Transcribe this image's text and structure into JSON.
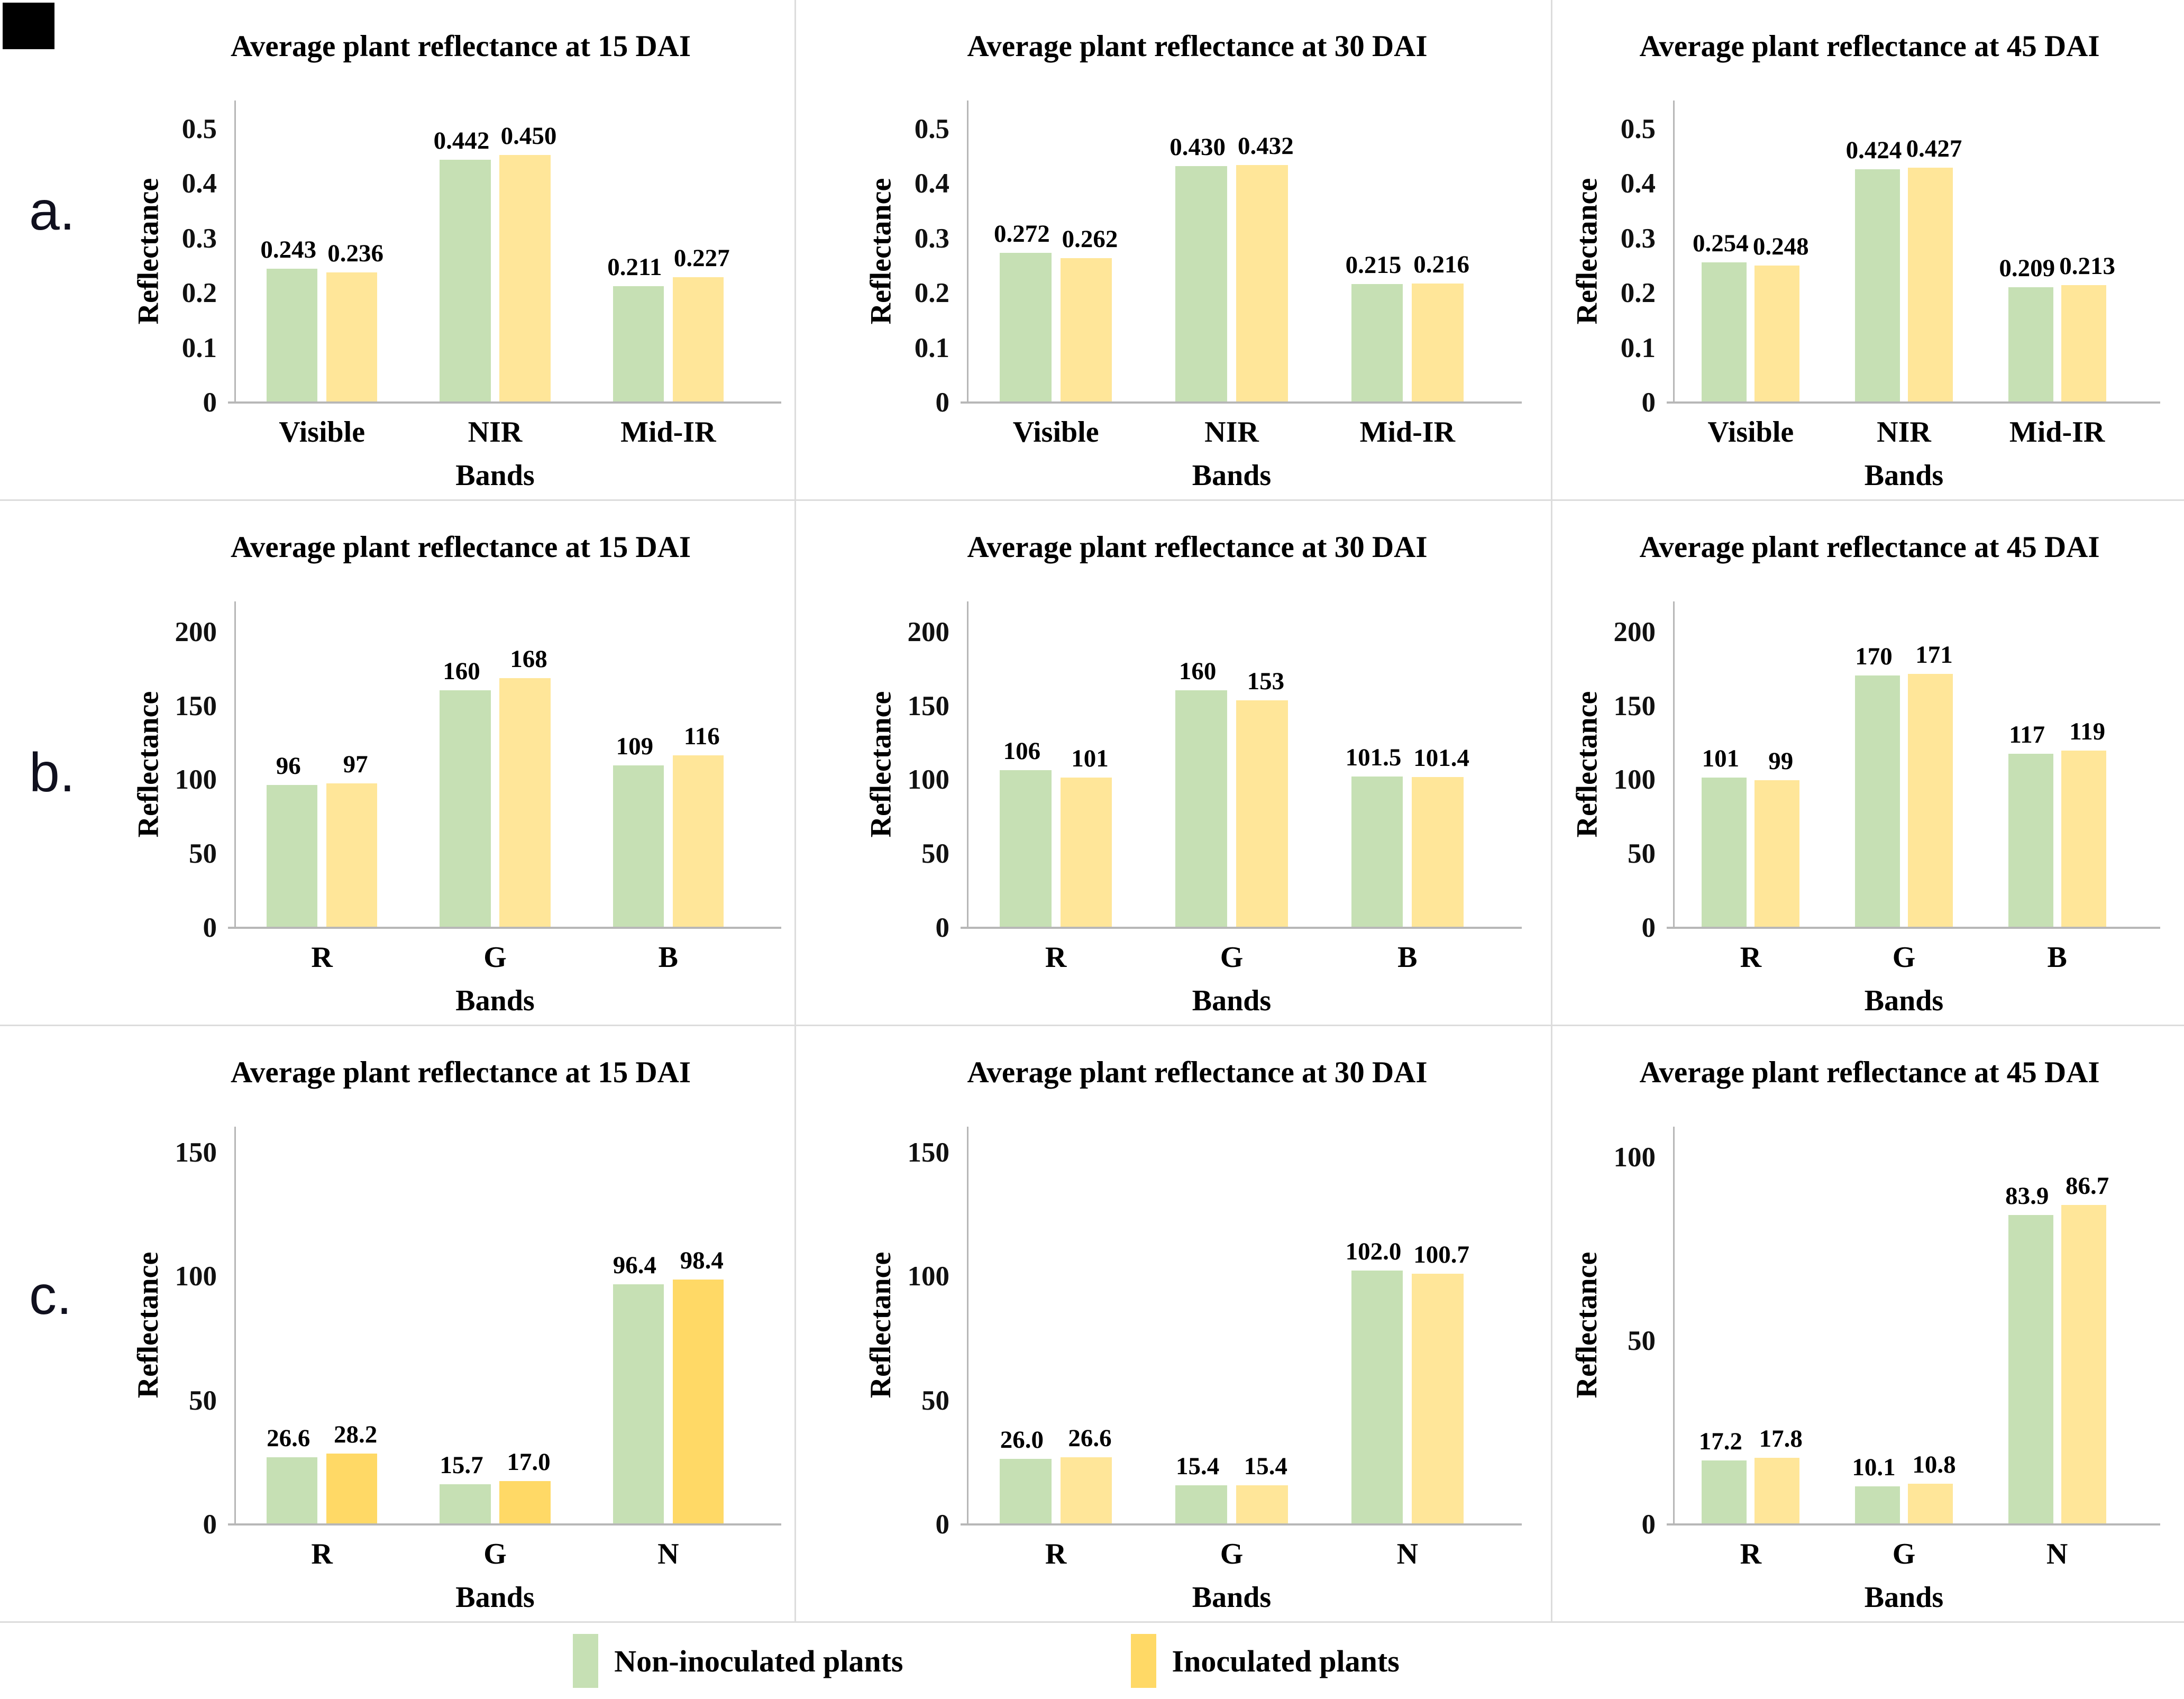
{
  "page": {
    "row_labels": [
      "a.",
      "b.",
      "c."
    ]
  },
  "legend": {
    "items": [
      {
        "label": "Non-inoculated plants",
        "color": "#C6E0B4"
      },
      {
        "label": "Inoculated plants",
        "color": "#FFD966"
      }
    ]
  },
  "chart_data": [
    {
      "type": "bar",
      "row": 0,
      "col": 0,
      "title": "Average plant reflectance at 15 DAI",
      "ylabel": "Reflectance",
      "xlabel": "Bands",
      "categories": [
        "Visible",
        "NIR",
        "Mid-IR"
      ],
      "ytick_labels": [
        "0",
        "0.1",
        "0.2",
        "0.3",
        "0.4",
        "0.5"
      ],
      "yticks": [
        0,
        0.1,
        0.2,
        0.3,
        0.4,
        0.5
      ],
      "ymax": 0.55,
      "grid": false,
      "series": [
        {
          "name": "Non-inoculated plants",
          "color": "#C6E0B4",
          "values": [
            0.243,
            0.442,
            0.211
          ],
          "labels": [
            "0.243",
            "0.442",
            "0.211"
          ]
        },
        {
          "name": "Inoculated plants",
          "color": "#FFE699",
          "values": [
            0.236,
            0.45,
            0.227
          ],
          "labels": [
            "0.236",
            "0.450",
            "0.227"
          ]
        }
      ]
    },
    {
      "type": "bar",
      "row": 0,
      "col": 1,
      "title": "Average plant reflectance at 30 DAI",
      "ylabel": "Reflectance",
      "xlabel": "Bands",
      "categories": [
        "Visible",
        "NIR",
        "Mid-IR"
      ],
      "ytick_labels": [
        "0",
        "0.1",
        "0.2",
        "0.3",
        "0.4",
        "0.5"
      ],
      "yticks": [
        0,
        0.1,
        0.2,
        0.3,
        0.4,
        0.5
      ],
      "ymax": 0.55,
      "grid": false,
      "series": [
        {
          "name": "Non-inoculated plants",
          "color": "#C6E0B4",
          "values": [
            0.272,
            0.43,
            0.215
          ],
          "labels": [
            "0.272",
            "0.430",
            "0.215"
          ]
        },
        {
          "name": "Inoculated plants",
          "color": "#FFE699",
          "values": [
            0.262,
            0.432,
            0.216
          ],
          "labels": [
            "0.262",
            "0.432",
            "0.216"
          ]
        }
      ]
    },
    {
      "type": "bar",
      "row": 0,
      "col": 2,
      "title": "Average plant reflectance at 45 DAI",
      "ylabel": "Reflectance",
      "xlabel": "Bands",
      "categories": [
        "Visible",
        "NIR",
        "Mid-IR"
      ],
      "ytick_labels": [
        "0",
        "0.1",
        "0.2",
        "0.3",
        "0.4",
        "0.5"
      ],
      "yticks": [
        0,
        0.1,
        0.2,
        0.3,
        0.4,
        0.5
      ],
      "ymax": 0.55,
      "grid": false,
      "series": [
        {
          "name": "Non-inoculated plants",
          "color": "#C6E0B4",
          "values": [
            0.254,
            0.424,
            0.209
          ],
          "labels": [
            "0.254",
            "0.424",
            "0.209"
          ]
        },
        {
          "name": "Inoculated plants",
          "color": "#FFE699",
          "values": [
            0.248,
            0.427,
            0.213
          ],
          "labels": [
            "0.248",
            "0.427",
            "0.213"
          ]
        }
      ]
    },
    {
      "type": "bar",
      "row": 1,
      "col": 0,
      "title": "Average plant reflectance at 15 DAI",
      "ylabel": "Reflectance",
      "xlabel": "Bands",
      "categories": [
        "R",
        "G",
        "B"
      ],
      "ytick_labels": [
        "0",
        "50",
        "100",
        "150",
        "200"
      ],
      "yticks": [
        0,
        50,
        100,
        150,
        200
      ],
      "ymax": 220,
      "grid": false,
      "series": [
        {
          "name": "Non-inoculated plants",
          "color": "#C6E0B4",
          "values": [
            96,
            160,
            109
          ],
          "labels": [
            "96",
            "160",
            "109"
          ]
        },
        {
          "name": "Inoculated plants",
          "color": "#FFE699",
          "values": [
            97,
            168,
            116
          ],
          "labels": [
            "97",
            "168",
            "116"
          ]
        }
      ]
    },
    {
      "type": "bar",
      "row": 1,
      "col": 1,
      "title": "Average plant reflectance at 30 DAI",
      "ylabel": "Reflectance",
      "xlabel": "Bands",
      "categories": [
        "R",
        "G",
        "B"
      ],
      "ytick_labels": [
        "0",
        "50",
        "100",
        "150",
        "200"
      ],
      "yticks": [
        0,
        50,
        100,
        150,
        200
      ],
      "ymax": 220,
      "grid": false,
      "series": [
        {
          "name": "Non-inoculated plants",
          "color": "#C6E0B4",
          "values": [
            106,
            160,
            101.5
          ],
          "labels": [
            "106",
            "160",
            "101.5"
          ]
        },
        {
          "name": "Inoculated plants",
          "color": "#FFE699",
          "values": [
            101,
            153,
            101.4
          ],
          "labels": [
            "101",
            "153",
            "101.4"
          ]
        }
      ]
    },
    {
      "type": "bar",
      "row": 1,
      "col": 2,
      "title": "Average plant reflectance at 45 DAI",
      "ylabel": "Reflectance",
      "xlabel": "Bands",
      "categories": [
        "R",
        "G",
        "B"
      ],
      "ytick_labels": [
        "0",
        "50",
        "100",
        "150",
        "200"
      ],
      "yticks": [
        0,
        50,
        100,
        150,
        200
      ],
      "ymax": 220,
      "grid": false,
      "series": [
        {
          "name": "Non-inoculated plants",
          "color": "#C6E0B4",
          "values": [
            101,
            170,
            117
          ],
          "labels": [
            "101",
            "170",
            "117"
          ]
        },
        {
          "name": "Inoculated plants",
          "color": "#FFE699",
          "values": [
            99,
            171,
            119
          ],
          "labels": [
            "99",
            "171",
            "119"
          ]
        }
      ]
    },
    {
      "type": "bar",
      "row": 2,
      "col": 0,
      "title": "Average plant reflectance at 15 DAI",
      "ylabel": "Reflectance",
      "xlabel": "Bands",
      "categories": [
        "R",
        "G",
        "N"
      ],
      "ytick_labels": [
        "0",
        "50",
        "100",
        "150"
      ],
      "yticks": [
        0,
        50,
        100,
        150
      ],
      "ymax": 160,
      "grid": false,
      "series": [
        {
          "name": "Non-inoculated plants",
          "color": "#C6E0B4",
          "values": [
            26.6,
            15.7,
            96.4
          ],
          "labels": [
            "26.6",
            "15.7",
            "96.4"
          ]
        },
        {
          "name": "Inoculated plants",
          "color": "#FFD966",
          "values": [
            28.2,
            17.0,
            98.4
          ],
          "labels": [
            "28.2",
            "17.0",
            "98.4"
          ]
        }
      ]
    },
    {
      "type": "bar",
      "row": 2,
      "col": 1,
      "title": "Average plant reflectance at 30 DAI",
      "ylabel": "Reflectance",
      "xlabel": "Bands",
      "categories": [
        "R",
        "G",
        "N"
      ],
      "ytick_labels": [
        "0",
        "50",
        "100",
        "150"
      ],
      "yticks": [
        0,
        50,
        100,
        150
      ],
      "ymax": 160,
      "grid": false,
      "series": [
        {
          "name": "Non-inoculated plants",
          "color": "#C6E0B4",
          "values": [
            26.0,
            15.4,
            102.0
          ],
          "labels": [
            "26.0",
            "15.4",
            "102.0"
          ]
        },
        {
          "name": "Inoculated plants",
          "color": "#FFE699",
          "values": [
            26.6,
            15.4,
            100.7
          ],
          "labels": [
            "26.6",
            "15.4",
            "100.7"
          ]
        }
      ]
    },
    {
      "type": "bar",
      "row": 2,
      "col": 2,
      "title": "Average plant reflectance at 45 DAI",
      "ylabel": "Reflectance",
      "xlabel": "Bands",
      "categories": [
        "R",
        "G",
        "N"
      ],
      "ytick_labels": [
        "0",
        "50",
        "100"
      ],
      "yticks": [
        0,
        50,
        100
      ],
      "ymax": 108,
      "grid": false,
      "series": [
        {
          "name": "Non-inoculated plants",
          "color": "#C6E0B4",
          "values": [
            17.2,
            10.1,
            83.9
          ],
          "labels": [
            "17.2",
            "10.1",
            "83.9"
          ]
        },
        {
          "name": "Inoculated plants",
          "color": "#FFE699",
          "values": [
            17.8,
            10.8,
            86.7
          ],
          "labels": [
            "17.8",
            "10.8",
            "86.7"
          ]
        }
      ]
    }
  ]
}
